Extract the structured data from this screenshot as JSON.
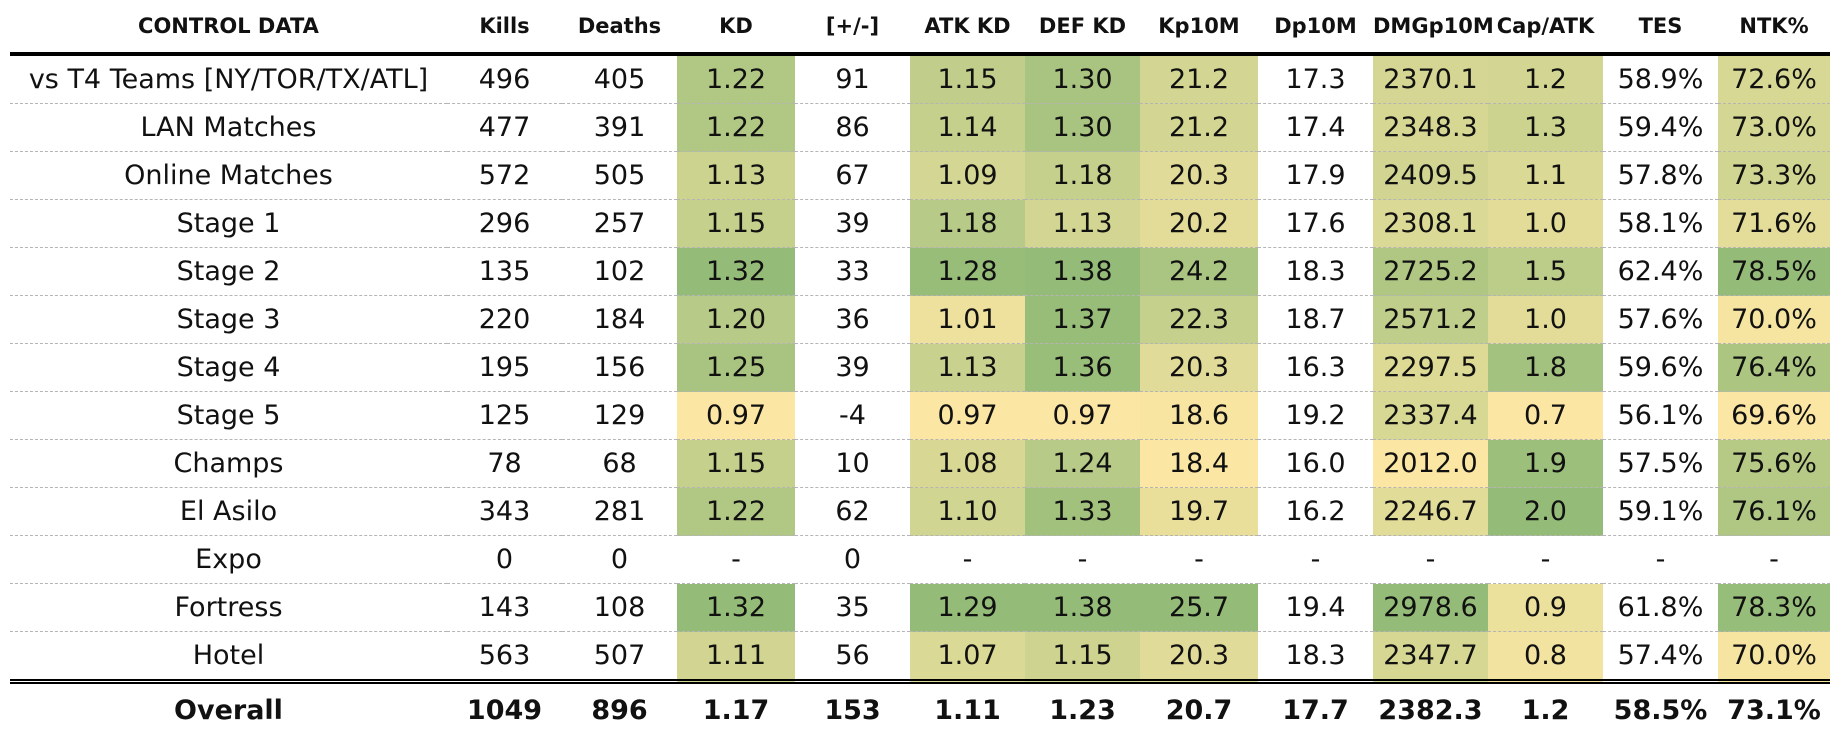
{
  "columns": [
    "CONTROL DATA",
    "Kills",
    "Deaths",
    "KD",
    "[+/-]",
    "ATK KD",
    "DEF KD",
    "Kp10M",
    "Dp10M",
    "DMGp10M",
    "Cap/ATK",
    "TES",
    "NTK%"
  ],
  "heat_columns": [
    3,
    5,
    6,
    7,
    9,
    10,
    12
  ],
  "rows": [
    [
      "vs T4 Teams [NY/TOR/TX/ATL]",
      "496",
      "405",
      "1.22",
      "91",
      "1.15",
      "1.30",
      "21.2",
      "17.3",
      "2370.1",
      "1.2",
      "58.9%",
      "72.6%"
    ],
    [
      "LAN Matches",
      "477",
      "391",
      "1.22",
      "86",
      "1.14",
      "1.30",
      "21.2",
      "17.4",
      "2348.3",
      "1.3",
      "59.4%",
      "73.0%"
    ],
    [
      "Online Matches",
      "572",
      "505",
      "1.13",
      "67",
      "1.09",
      "1.18",
      "20.3",
      "17.9",
      "2409.5",
      "1.1",
      "57.8%",
      "73.3%"
    ],
    [
      "Stage 1",
      "296",
      "257",
      "1.15",
      "39",
      "1.18",
      "1.13",
      "20.2",
      "17.6",
      "2308.1",
      "1.0",
      "58.1%",
      "71.6%"
    ],
    [
      "Stage 2",
      "135",
      "102",
      "1.32",
      "33",
      "1.28",
      "1.38",
      "24.2",
      "18.3",
      "2725.2",
      "1.5",
      "62.4%",
      "78.5%"
    ],
    [
      "Stage 3",
      "220",
      "184",
      "1.20",
      "36",
      "1.01",
      "1.37",
      "22.3",
      "18.7",
      "2571.2",
      "1.0",
      "57.6%",
      "70.0%"
    ],
    [
      "Stage 4",
      "195",
      "156",
      "1.25",
      "39",
      "1.13",
      "1.36",
      "20.3",
      "16.3",
      "2297.5",
      "1.8",
      "59.6%",
      "76.4%"
    ],
    [
      "Stage 5",
      "125",
      "129",
      "0.97",
      "-4",
      "0.97",
      "0.97",
      "18.6",
      "19.2",
      "2337.4",
      "0.7",
      "56.1%",
      "69.6%"
    ],
    [
      "Champs",
      "78",
      "68",
      "1.15",
      "10",
      "1.08",
      "1.24",
      "18.4",
      "16.0",
      "2012.0",
      "1.9",
      "57.5%",
      "75.6%"
    ],
    [
      "El Asilo",
      "343",
      "281",
      "1.22",
      "62",
      "1.10",
      "1.33",
      "19.7",
      "16.2",
      "2246.7",
      "2.0",
      "59.1%",
      "76.1%"
    ],
    [
      "Expo",
      "0",
      "0",
      "-",
      "0",
      "-",
      "-",
      "-",
      "-",
      "-",
      "-",
      "-",
      "-"
    ],
    [
      "Fortress",
      "143",
      "108",
      "1.32",
      "35",
      "1.29",
      "1.38",
      "25.7",
      "19.4",
      "2978.6",
      "0.9",
      "61.8%",
      "78.3%"
    ],
    [
      "Hotel",
      "563",
      "507",
      "1.11",
      "56",
      "1.07",
      "1.15",
      "20.3",
      "18.3",
      "2347.7",
      "0.8",
      "57.4%",
      "70.0%"
    ]
  ],
  "overall": [
    "Overall",
    "1049",
    "896",
    "1.17",
    "153",
    "1.11",
    "1.23",
    "20.7",
    "17.7",
    "2382.3",
    "1.2",
    "58.5%",
    "73.1%"
  ],
  "colors": {
    "heat_low": "#fbe6a3",
    "heat_high": "#94bc78",
    "rule": "#000000",
    "row_divider": "#b5b5b5"
  }
}
